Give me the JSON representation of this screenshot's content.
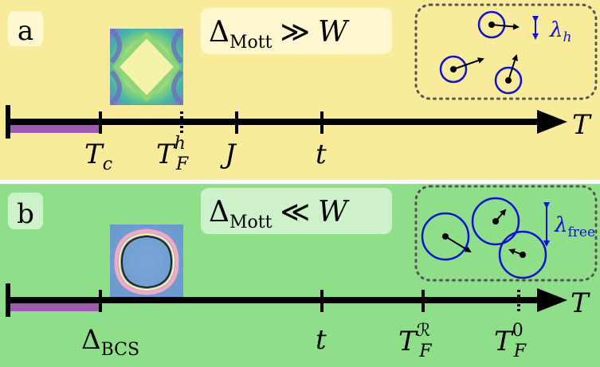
{
  "colors": {
    "panel_a_bg": "#f8ec9c",
    "panel_b_bg": "#8fdf8a",
    "axis": "#000000",
    "purple_bar": "#a05ab2",
    "circle": "#1010d0",
    "lambda_text": "#1010d0",
    "dashed_box": "#555555"
  },
  "panel_a": {
    "label": "a",
    "condition": {
      "symbol": "Δ",
      "sub": "Mott",
      "relation": "≫",
      "rhs": "W"
    },
    "axis_label": "T",
    "ticks": [
      {
        "main": "T",
        "sub": "c",
        "sup": "",
        "style": "solid"
      },
      {
        "main": "T",
        "sub": "F",
        "sup": "h",
        "style": "dashed"
      },
      {
        "main": "J",
        "sub": "",
        "sup": "",
        "style": "solid"
      },
      {
        "main": "t",
        "sub": "",
        "sup": "",
        "style": "solid"
      }
    ],
    "lambda": {
      "main": "λ",
      "sub": "h"
    },
    "fermi_surface_icon": "fermi-surface-square"
  },
  "panel_b": {
    "label": "b",
    "condition": {
      "symbol": "Δ",
      "sub": "Mott",
      "relation": "≪",
      "rhs": "W"
    },
    "axis_label": "T",
    "ticks": [
      {
        "main": "Δ",
        "sub": "BCS",
        "sup": "",
        "style": "solid"
      },
      {
        "main": "t",
        "sub": "",
        "sup": "",
        "style": "solid"
      },
      {
        "main": "T",
        "sub": "F",
        "sup": "ℛ",
        "style": "solid"
      },
      {
        "main": "T",
        "sub": "F",
        "sup": "0",
        "style": "dashed"
      }
    ],
    "lambda": {
      "main": "λ",
      "sub": "free"
    },
    "fermi_surface_icon": "fermi-surface-rounded"
  }
}
